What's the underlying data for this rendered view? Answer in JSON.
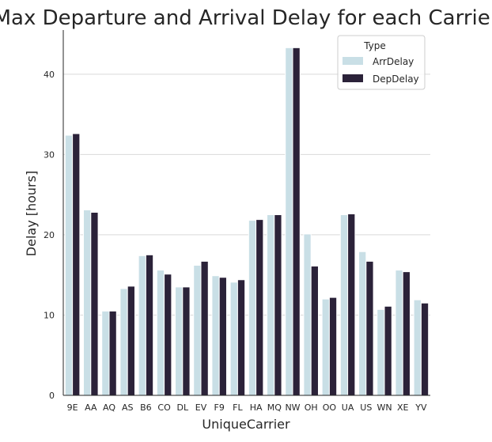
{
  "chart_data": {
    "type": "bar",
    "title": "Max Departure and Arrival Delay for each Carrier",
    "xlabel": "UniqueCarrier",
    "ylabel": "Delay [hours]",
    "ylim": [
      0,
      45.5
    ],
    "yticks": [
      0,
      10,
      20,
      30,
      40
    ],
    "grid": "horizontal",
    "legend": {
      "title": "Type",
      "placement": "top-right"
    },
    "categories": [
      "9E",
      "AA",
      "AQ",
      "AS",
      "B6",
      "CO",
      "DL",
      "EV",
      "F9",
      "FL",
      "HA",
      "MQ",
      "NW",
      "OH",
      "OO",
      "UA",
      "US",
      "WN",
      "XE",
      "YV"
    ],
    "series": [
      {
        "name": "ArrDelay",
        "color": "#c9dfe6",
        "values": [
          32.4,
          23.1,
          10.5,
          13.3,
          17.4,
          15.6,
          13.5,
          16.2,
          14.9,
          14.1,
          21.8,
          22.5,
          43.3,
          20.1,
          12.0,
          22.5,
          17.9,
          10.7,
          15.6,
          11.9
        ]
      },
      {
        "name": "DepDelay",
        "color": "#2b2239",
        "values": [
          32.6,
          22.8,
          10.5,
          13.6,
          17.5,
          15.1,
          13.5,
          16.7,
          14.7,
          14.4,
          21.9,
          22.5,
          43.3,
          16.1,
          12.2,
          22.6,
          16.7,
          11.1,
          15.4,
          11.5
        ]
      }
    ]
  }
}
